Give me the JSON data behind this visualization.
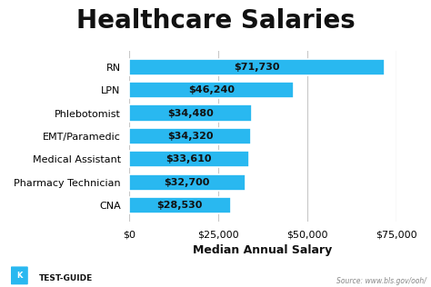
{
  "title": "Healthcare Salaries",
  "categories": [
    "CNA",
    "Pharmacy Technician",
    "Medical Assistant",
    "EMT/Paramedic",
    "Phlebotomist",
    "LPN",
    "RN"
  ],
  "values": [
    28530,
    32700,
    33610,
    34320,
    34480,
    46240,
    71730
  ],
  "labels": [
    "$28,530",
    "$32,700",
    "$33,610",
    "$34,320",
    "$34,480",
    "$46,240",
    "$71,730"
  ],
  "bar_color": "#29b8f0",
  "xlabel": "Median Annual Salary",
  "xlim": [
    0,
    75000
  ],
  "xticks": [
    0,
    25000,
    50000,
    75000
  ],
  "xticklabels": [
    "$0",
    "$25,000",
    "$50,000",
    "$75,000"
  ],
  "title_fontsize": 20,
  "ylabel_fontsize": 8,
  "xlabel_fontsize": 9,
  "tick_fontsize": 8,
  "bar_label_fontsize": 8,
  "source_text": "Source: www.bls.gov/ooh/",
  "footer_text": "TEST-GUIDE",
  "bg_color": "#ffffff",
  "grid_color": "#c8c8c8",
  "bar_label_color": "#111111",
  "footer_color": "#111111",
  "source_color": "#888888",
  "logo_color": "#29b8f0"
}
